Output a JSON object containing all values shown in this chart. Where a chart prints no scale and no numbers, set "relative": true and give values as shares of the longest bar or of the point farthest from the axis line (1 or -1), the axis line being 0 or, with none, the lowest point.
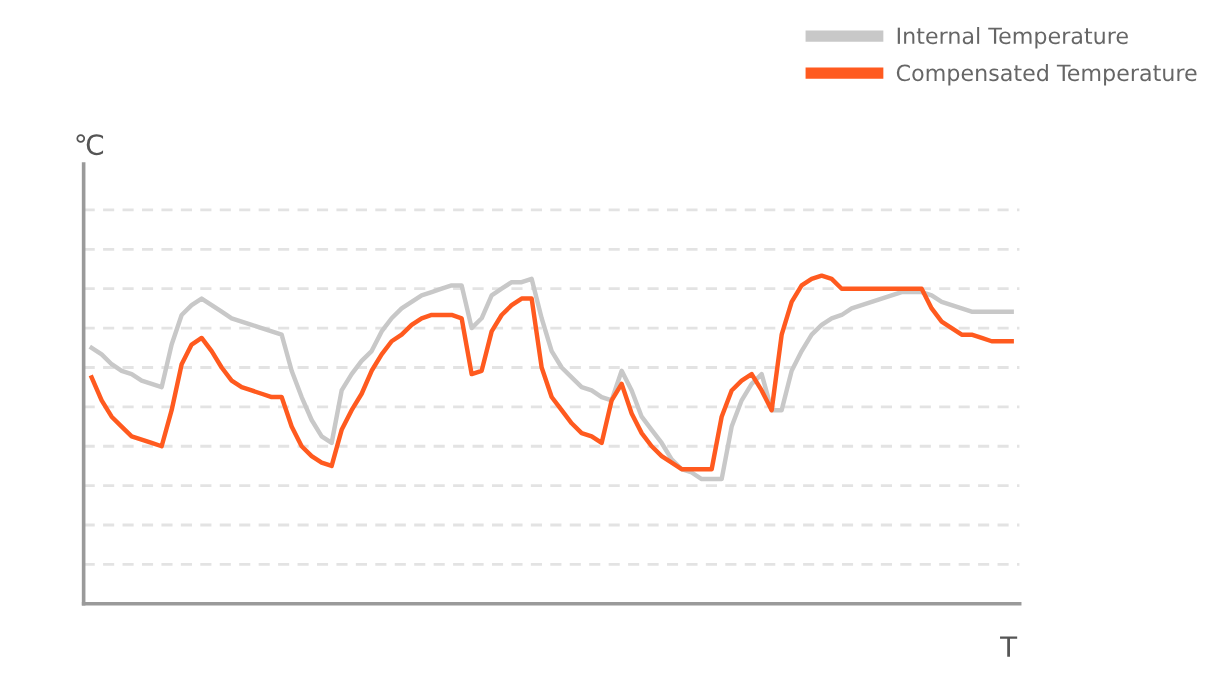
{
  "chart_data": {
    "type": "line",
    "relative": true,
    "xlabel": "T",
    "ylabel": "℃",
    "grid": "y",
    "legend": "top right",
    "line_style": "solid",
    "marker": "none",
    "categories": [
      null,
      null,
      null,
      null,
      null,
      null,
      null,
      null,
      null,
      null,
      null,
      null,
      null,
      null,
      null,
      null,
      null,
      null,
      null,
      null,
      null,
      null,
      null,
      null,
      null,
      null,
      null,
      null,
      null,
      null,
      null,
      null,
      null,
      null,
      null,
      null,
      null,
      null,
      null,
      null,
      null,
      null,
      null,
      null,
      null,
      null,
      null,
      null,
      null,
      null,
      null,
      null,
      null,
      null,
      null,
      null,
      null,
      null,
      null,
      null,
      null,
      null,
      null,
      null,
      null,
      null,
      null,
      null,
      null,
      null,
      null,
      null,
      null,
      null,
      null,
      null,
      null,
      null,
      null,
      null,
      null,
      null,
      null,
      null,
      null,
      null,
      null,
      null,
      null,
      null,
      null,
      null,
      null
    ],
    "series": [
      {
        "name": "Internal Temperature",
        "color": "#c8c8c8",
        "values": [
          0.78,
          0.76,
          0.73,
          0.71,
          0.7,
          0.68,
          0.67,
          0.66,
          0.79,
          0.88,
          0.91,
          0.93,
          0.91,
          0.89,
          0.87,
          0.86,
          0.85,
          0.84,
          0.83,
          0.82,
          0.71,
          0.63,
          0.56,
          0.51,
          0.49,
          0.65,
          0.7,
          0.74,
          0.77,
          0.83,
          0.87,
          0.9,
          0.92,
          0.94,
          0.95,
          0.96,
          0.97,
          0.97,
          0.84,
          0.87,
          0.94,
          0.96,
          0.98,
          0.98,
          0.99,
          0.87,
          0.77,
          0.72,
          0.69,
          0.66,
          0.65,
          0.63,
          0.62,
          0.71,
          0.65,
          0.57,
          0.53,
          0.49,
          0.44,
          0.41,
          0.4,
          0.38,
          0.38,
          0.38,
          0.54,
          0.62,
          0.67,
          0.7,
          0.59,
          0.59,
          0.71,
          0.77,
          0.82,
          0.85,
          0.87,
          0.88,
          0.9,
          0.91,
          0.92,
          0.93,
          0.94,
          0.95,
          0.95,
          0.95,
          0.94,
          0.92,
          0.91,
          0.9,
          0.89,
          0.89,
          0.89,
          0.89,
          0.89
        ]
      },
      {
        "name": "Compensated Temperature",
        "color": "#ff5a1f",
        "values": [
          0.69,
          0.62,
          0.57,
          0.54,
          0.51,
          0.5,
          0.49,
          0.48,
          0.59,
          0.73,
          0.79,
          0.81,
          0.77,
          0.72,
          0.68,
          0.66,
          0.65,
          0.64,
          0.63,
          0.63,
          0.54,
          0.48,
          0.45,
          0.43,
          0.42,
          0.53,
          0.59,
          0.64,
          0.71,
          0.76,
          0.8,
          0.82,
          0.85,
          0.87,
          0.88,
          0.88,
          0.88,
          0.87,
          0.7,
          0.71,
          0.83,
          0.88,
          0.91,
          0.93,
          0.93,
          0.72,
          0.63,
          0.59,
          0.55,
          0.52,
          0.51,
          0.49,
          0.62,
          0.67,
          0.58,
          0.52,
          0.48,
          0.45,
          0.43,
          0.41,
          0.41,
          0.41,
          0.41,
          0.57,
          0.65,
          0.68,
          0.7,
          0.65,
          0.59,
          0.82,
          0.92,
          0.97,
          0.99,
          1,
          0.99,
          0.96,
          0.96,
          0.96,
          0.96,
          0.96,
          0.96,
          0.96,
          0.96,
          0.96,
          0.9,
          0.86,
          0.84,
          0.82,
          0.82,
          0.81,
          0.8,
          0.8,
          0.8
        ]
      }
    ]
  }
}
